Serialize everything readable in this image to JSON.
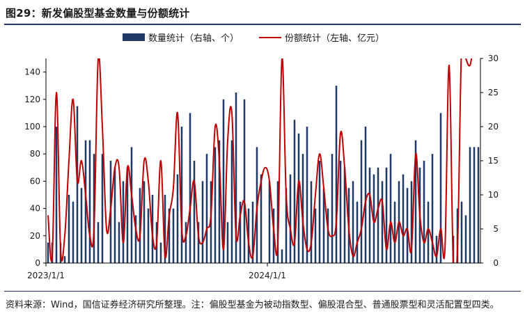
{
  "header": {
    "title": "图29：新发偏股型基金数量与份额统计"
  },
  "footer": {
    "note": "资料来源：Wind，国信证券经济研究所整理。注：偏股型基金为被动指数型、偏股混合型、普通股票型和灵活配置型四类。"
  },
  "chart_data": {
    "type": "bar",
    "legend": {
      "position": "top-center"
    },
    "bar_color": "#1f3864",
    "line_color": "#c00000",
    "x_ticks": [
      "2023/1/1",
      "2024/1/1"
    ],
    "x_tick_indices": [
      0,
      53
    ],
    "series": [
      {
        "name": "数量统计（右轴、个）",
        "kind": "bar",
        "axis": "left",
        "values": [
          15,
          15,
          100,
          15,
          5,
          50,
          45,
          115,
          55,
          90,
          90,
          80,
          30,
          80,
          0,
          75,
          70,
          30,
          60,
          70,
          85,
          35,
          55,
          60,
          40,
          50,
          30,
          15,
          50,
          40,
          40,
          65,
          100,
          30,
          110,
          75,
          30,
          60,
          80,
          60,
          85,
          90,
          120,
          30,
          90,
          125,
          45,
          120,
          40,
          45,
          85,
          65,
          0,
          60,
          40,
          60,
          10,
          55,
          65,
          105,
          95,
          80,
          100,
          60,
          40,
          75,
          55,
          40,
          80,
          130,
          75,
          70,
          55,
          60,
          45,
          90,
          100,
          70,
          65,
          70,
          60,
          70,
          80,
          45,
          60,
          65,
          55,
          60,
          90,
          70,
          75,
          45,
          80,
          20,
          110,
          0,
          0,
          20,
          40,
          45,
          35,
          85,
          85,
          85
        ],
        "label_position": "top-center"
      },
      {
        "name": "份额统计（左轴、亿元）",
        "kind": "line",
        "axis": "right",
        "values": [
          7,
          1,
          25,
          2,
          4,
          15,
          24,
          12,
          15,
          10,
          4,
          5,
          30,
          20,
          5,
          8,
          14,
          14,
          3,
          14,
          10,
          5,
          4,
          15,
          12,
          4,
          3,
          15,
          1,
          7,
          11,
          22,
          5,
          4,
          8,
          12,
          4,
          3,
          5,
          7,
          20,
          15,
          2,
          18,
          22,
          4,
          7,
          9,
          3,
          1,
          8,
          12,
          14,
          12,
          5,
          3,
          30,
          10,
          5,
          3,
          12,
          6,
          2,
          3,
          10,
          16,
          11,
          5,
          4,
          6,
          19,
          14,
          5,
          1,
          3,
          5,
          9,
          10,
          6,
          8,
          9,
          2,
          6,
          3,
          6,
          4,
          5,
          2,
          16,
          7,
          3,
          5,
          3,
          1,
          5,
          2,
          29,
          0,
          2,
          32,
          30,
          29,
          32,
          30
        ],
        "label_position": "top-center"
      }
    ],
    "left_axis": {
      "ylim": [
        0,
        150
      ],
      "ticks": [
        0,
        20,
        40,
        60,
        80,
        100,
        120,
        140
      ]
    },
    "right_axis": {
      "ylim": [
        0,
        30
      ],
      "ticks": [
        0,
        5,
        10,
        15,
        20,
        25,
        30
      ]
    },
    "grid": false
  }
}
